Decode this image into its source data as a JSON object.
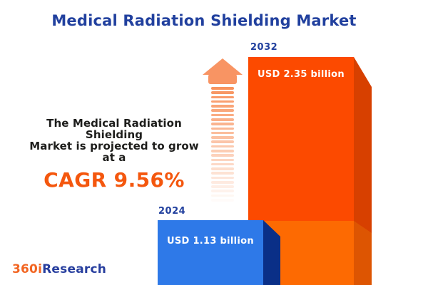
{
  "header": {
    "title": "Medical Radiation Shielding Market"
  },
  "promo": {
    "line1": "The Medical Radiation Shielding",
    "line2": "Market is projected to grow at a",
    "cagr": "CAGR 9.56%"
  },
  "bars": {
    "b2032": {
      "year": "2032",
      "value_label": "USD 2.35 billion"
    },
    "b2024": {
      "year": "2024",
      "value_label": "USD 1.13 billion"
    }
  },
  "logo": {
    "orange_part": "360i",
    "blue_part": "Research"
  },
  "decor": {
    "arrow_dash_count": 26
  },
  "colors": {
    "title_blue": "#21409e",
    "body_text": "#1d1d1b",
    "cagr_orange": "#f4570e",
    "bar_2032_front_top": "#fc4a00",
    "bar_2032_front_bottom": "#fd6a02",
    "bar_2032_side_top": "#d74000",
    "bar_2032_side_bottom": "#dd5502",
    "bar_2024_front": "#2e79e8",
    "bar_2024_side": "#0a2f87",
    "arrow_salmon": "#f89463",
    "logo_orange": "#f26522",
    "logo_blue": "#273e9e",
    "background": "#ffffff"
  },
  "chart_data": {
    "type": "bar",
    "title": "Medical Radiation Shielding Market",
    "categories": [
      "2024",
      "2032"
    ],
    "values": [
      1.13,
      2.35
    ],
    "unit": "USD billion",
    "value_labels": [
      "USD 1.13 billion",
      "USD 2.35 billion"
    ],
    "annotation": "The Medical Radiation Shielding Market is projected to grow at a CAGR 9.56%",
    "cagr_percent": 9.56,
    "series_colors": [
      "#2e79e8",
      "#fc4a00"
    ],
    "orientation": "vertical",
    "grid": false,
    "axes_visible": false,
    "legend": false,
    "style": "3d-infographic"
  }
}
